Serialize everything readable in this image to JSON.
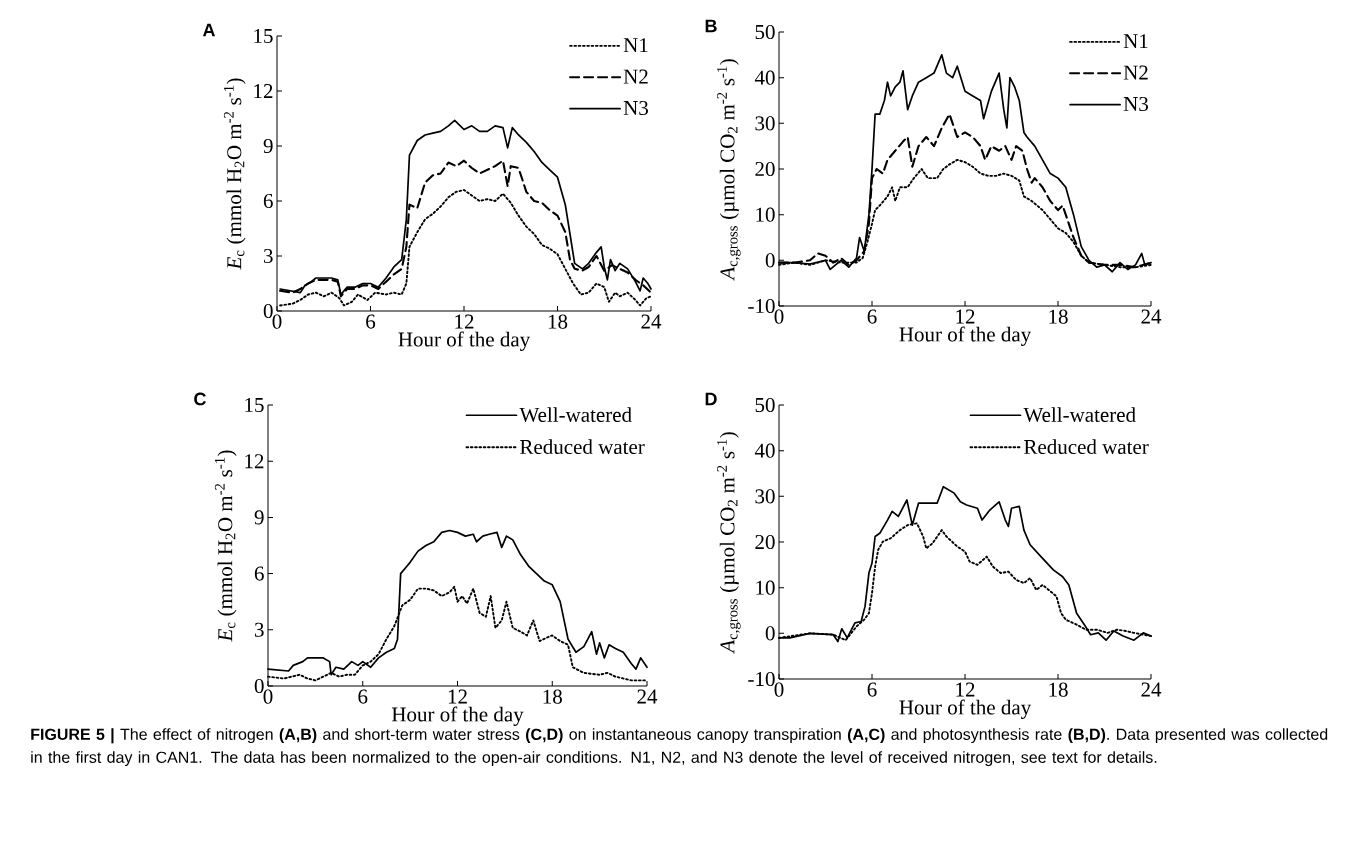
{
  "chart_data": [
    {
      "type": "line",
      "title": "A",
      "xlabel": "Hour of the day",
      "ylabel": "*E*$_{c}$ (mmol H$_{2}$O m$^{-2}$ s$^{-1}$)",
      "xlim": [
        0,
        24
      ],
      "xticks": [
        0,
        6,
        12,
        18,
        24
      ],
      "ylim": [
        0,
        15
      ],
      "yticks": [
        0,
        3,
        6,
        9,
        12,
        15
      ],
      "legend": "top right",
      "series": [
        {
          "name": "N1",
          "color": "#000000",
          "line_style": "dotted",
          "x": [
            0.2,
            1,
            1.5,
            2,
            2.5,
            3,
            3.5,
            4,
            4.3,
            4.8,
            5.2,
            5.8,
            6.3,
            7,
            7.5,
            8,
            8.3,
            8.5,
            9,
            9.5,
            10,
            10.5,
            11,
            11.5,
            12,
            12.5,
            13,
            13.5,
            14,
            14.5,
            15,
            15.5,
            16,
            16.5,
            17,
            17.5,
            18,
            18.5,
            19,
            19.5,
            20,
            20.5,
            21,
            21.3,
            21.7,
            22,
            22.5,
            23,
            23.3,
            23.7,
            24
          ],
          "values": [
            0.3,
            0.4,
            0.6,
            0.9,
            1.0,
            0.8,
            1.0,
            0.7,
            0.3,
            0.5,
            0.9,
            0.6,
            1.0,
            0.9,
            1.0,
            0.9,
            1.5,
            3.5,
            4.3,
            5.0,
            5.3,
            5.7,
            6.2,
            6.5,
            6.6,
            6.3,
            6.0,
            6.1,
            6.0,
            6.4,
            5.9,
            5.2,
            4.6,
            4.2,
            3.6,
            3.4,
            3.1,
            2.3,
            1.5,
            0.9,
            1.0,
            1.5,
            1.3,
            0.5,
            1.0,
            0.8,
            1.0,
            0.6,
            0.3,
            0.7,
            0.8
          ]
        },
        {
          "name": "N2",
          "color": "#000000",
          "line_style": "dashed",
          "x": [
            0.2,
            1,
            1.5,
            2,
            2.5,
            3.5,
            3.9,
            4.1,
            4.5,
            5,
            5.5,
            6,
            6.5,
            7,
            7.5,
            8,
            8.3,
            8.5,
            9,
            9.5,
            10,
            10.5,
            11,
            11.5,
            12,
            12.5,
            13,
            13.5,
            14,
            14.5,
            14.8,
            15,
            15.5,
            16,
            16.5,
            17,
            17.5,
            18,
            18.5,
            18.8,
            19.1,
            19.6,
            20,
            20.5,
            21,
            21.5,
            22,
            22.5,
            23,
            23.5,
            24
          ],
          "values": [
            1.1,
            1.0,
            1.2,
            1.5,
            1.7,
            1.7,
            1.6,
            0.8,
            1.2,
            1.2,
            1.4,
            1.4,
            1.2,
            1.6,
            2.0,
            2.3,
            3.5,
            5.8,
            5.6,
            7.0,
            7.4,
            7.5,
            8.1,
            7.9,
            8.2,
            7.8,
            7.5,
            7.7,
            7.9,
            8.2,
            6.8,
            7.9,
            7.8,
            6.5,
            6.0,
            5.9,
            5.5,
            5.2,
            4.3,
            2.8,
            2.3,
            2.2,
            2.4,
            3.0,
            2.2,
            2.5,
            2.3,
            2.1,
            1.7,
            1.4,
            1.0
          ]
        },
        {
          "name": "N3",
          "color": "#000000",
          "line_style": "solid",
          "x": [
            0.2,
            1.5,
            1.8,
            2.2,
            2.5,
            3.5,
            3.9,
            4.1,
            4.5,
            5,
            5.5,
            6,
            6.5,
            7,
            7.5,
            8,
            8.3,
            8.5,
            9,
            9.5,
            10,
            10.5,
            11,
            11.4,
            12,
            12.5,
            13,
            13.5,
            14,
            14.5,
            14.8,
            15.1,
            15.5,
            16,
            16.5,
            17,
            17.5,
            18,
            18.5,
            18.8,
            19.1,
            19.6,
            20,
            20.5,
            20.8,
            21,
            21.2,
            21.4,
            21.7,
            22,
            22.5,
            23,
            23.3,
            23.5,
            23.8,
            24
          ],
          "values": [
            1.2,
            1.0,
            1.4,
            1.6,
            1.8,
            1.8,
            1.7,
            0.9,
            1.3,
            1.3,
            1.5,
            1.5,
            1.3,
            1.8,
            2.4,
            2.8,
            5.0,
            8.5,
            9.3,
            9.6,
            9.7,
            9.8,
            10.1,
            10.4,
            9.9,
            10.1,
            9.8,
            9.8,
            10.1,
            10.0,
            8.9,
            10.0,
            9.6,
            9.2,
            8.7,
            8.1,
            7.7,
            7.3,
            5.8,
            4.2,
            2.6,
            2.3,
            2.6,
            3.2,
            3.5,
            2.4,
            1.7,
            2.8,
            2.2,
            2.6,
            2.3,
            1.6,
            1.1,
            1.8,
            1.5,
            1.2
          ]
        }
      ]
    },
    {
      "type": "line",
      "title": "B",
      "xlabel": "Hour of the day",
      "ylabel": "*A*$_{c,gross}$ (µmol CO$_{2}$ m$^{-2}$ s$^{-1}$)",
      "xlim": [
        0,
        24
      ],
      "xticks": [
        0,
        6,
        12,
        18,
        24
      ],
      "ylim": [
        -10,
        50
      ],
      "yticks": [
        -10,
        0,
        10,
        20,
        30,
        40,
        50
      ],
      "legend": "top right",
      "series": [
        {
          "name": "N1",
          "color": "#000000",
          "line_style": "dotted",
          "x": [
            0,
            1,
            2,
            3,
            4,
            5,
            5.4,
            5.7,
            6,
            6.2,
            6.5,
            7,
            7.3,
            7.5,
            7.8,
            8.3,
            8.7,
            9.2,
            9.6,
            10.2,
            10.6,
            11,
            11.5,
            12,
            12.5,
            13,
            13.5,
            14,
            14.5,
            15,
            15.5,
            15.8,
            16.3,
            17,
            17.5,
            18,
            18.5,
            19,
            19.5,
            20,
            21,
            22,
            23,
            24
          ],
          "values": [
            -1,
            -0.5,
            -1,
            0,
            -0.5,
            -0.5,
            0.5,
            4,
            8,
            11,
            12,
            14,
            16,
            13,
            16,
            16,
            18,
            20,
            18,
            18,
            20,
            21,
            22,
            21.5,
            20.5,
            19,
            18.5,
            18.5,
            19,
            18.5,
            17.5,
            14,
            13,
            11,
            9,
            7,
            6,
            4,
            1,
            -0.5,
            -1,
            -1.5,
            -1.5,
            -1
          ]
        },
        {
          "name": "N2",
          "color": "#000000",
          "line_style": "dashed",
          "x": [
            0,
            1,
            2,
            2.5,
            3,
            3.5,
            4,
            4.5,
            5,
            5.5,
            5.8,
            6,
            6.3,
            6.7,
            7,
            7.5,
            8,
            8.3,
            8.6,
            9,
            9.5,
            10,
            10.5,
            11,
            11.5,
            12,
            12.5,
            13,
            13.3,
            13.7,
            14.2,
            14.6,
            15,
            15.3,
            15.7,
            16,
            16.3,
            16.5,
            17,
            17.5,
            18,
            18.3,
            18.7,
            19,
            19.5,
            20,
            21,
            22,
            23,
            24
          ],
          "values": [
            -0.5,
            -0.5,
            0,
            1.5,
            1,
            -0.5,
            0.5,
            -1,
            0,
            2,
            8,
            18,
            20,
            19,
            22,
            24,
            26,
            27,
            20.5,
            25,
            27,
            25,
            29,
            32,
            27,
            28,
            27,
            25,
            22,
            25,
            24,
            25,
            22,
            25,
            24,
            20,
            17,
            18,
            16,
            13,
            11,
            12,
            8,
            5,
            1,
            -0.5,
            -1,
            -1,
            -1.5,
            -0.5
          ]
        },
        {
          "name": "N3",
          "color": "#000000",
          "line_style": "solid",
          "x": [
            0,
            1,
            2,
            3,
            3.3,
            4,
            4.5,
            5,
            5.2,
            5.5,
            5.8,
            6,
            6.2,
            6.5,
            6.8,
            7,
            7.2,
            7.5,
            7.8,
            8,
            8.3,
            8.6,
            9,
            9.5,
            10,
            10.5,
            10.8,
            11.2,
            11.5,
            12,
            12.5,
            13,
            13.2,
            13.7,
            14.2,
            14.5,
            14.7,
            14.9,
            15.2,
            15.5,
            15.8,
            16,
            16.5,
            17,
            17.5,
            18,
            18.5,
            19,
            19.5,
            20,
            20.5,
            21,
            21.5,
            22,
            22.5,
            23,
            23.4,
            23.6,
            24
          ],
          "values": [
            -0.5,
            -0.5,
            -0.8,
            0,
            -2,
            0,
            -1.5,
            0.5,
            5,
            2,
            10,
            20,
            32,
            32,
            35,
            39,
            36,
            38,
            39,
            41.5,
            33,
            36,
            39,
            40,
            41,
            45,
            41,
            40,
            42.5,
            37,
            36,
            35,
            31,
            37,
            41,
            33,
            29,
            40,
            38,
            35,
            28,
            27,
            25,
            22,
            19,
            18,
            16,
            10,
            3,
            0,
            -1.5,
            -1,
            -2.5,
            -0.5,
            -2,
            -1,
            1.5,
            -1,
            -0.5
          ]
        }
      ]
    },
    {
      "type": "line",
      "title": "C",
      "xlabel": "Hour of the day",
      "ylabel": "*E*$_{c}$ (mmol H$_{2}$O m$^{-2}$ s$^{-1}$)",
      "xlim": [
        0,
        24
      ],
      "xticks": [
        0,
        6,
        12,
        18,
        24
      ],
      "ylim": [
        0,
        15
      ],
      "yticks": [
        0,
        3,
        6,
        9,
        12,
        15
      ],
      "legend": "top right",
      "series": [
        {
          "name": "Well-watered",
          "color": "#000000",
          "line_style": "solid",
          "x": [
            0,
            1.3,
            1.6,
            2.2,
            2.5,
            3.5,
            3.9,
            4.0,
            4.3,
            4.8,
            5.3,
            5.7,
            6,
            6.5,
            7,
            7.5,
            8,
            8.2,
            8.4,
            8.7,
            9,
            9.5,
            10,
            10.5,
            11,
            11.5,
            12,
            12.5,
            13,
            13.2,
            13.6,
            14,
            14.5,
            14.8,
            15.1,
            15.5,
            16,
            16.5,
            17,
            17.5,
            18,
            18.5,
            19,
            19.5,
            20,
            20.5,
            20.8,
            21,
            21.3,
            21.6,
            22,
            22.5,
            23,
            23.3,
            23.6,
            24
          ],
          "values": [
            0.9,
            0.8,
            1.1,
            1.3,
            1.5,
            1.5,
            1.3,
            0.6,
            1.0,
            0.9,
            1.3,
            1.1,
            1.3,
            1.0,
            1.5,
            1.8,
            2.0,
            2.5,
            6.0,
            6.3,
            6.6,
            7.2,
            7.5,
            7.7,
            8.2,
            8.3,
            8.2,
            8.0,
            8.1,
            7.7,
            8.0,
            8.1,
            8.2,
            7.4,
            8.0,
            7.8,
            7.0,
            6.4,
            6.0,
            5.6,
            5.4,
            4.5,
            2.5,
            1.8,
            2.1,
            2.9,
            1.7,
            2.3,
            1.5,
            2.2,
            2.0,
            1.8,
            1.2,
            0.9,
            1.5,
            1.0
          ]
        },
        {
          "name": "Reduced water",
          "color": "#000000",
          "line_style": "dotted",
          "x": [
            0,
            1,
            2,
            2.5,
            3,
            3.5,
            4,
            4.5,
            5,
            5.5,
            6,
            6.5,
            7,
            7.5,
            8,
            8.5,
            9,
            9.5,
            10,
            10.5,
            11,
            11.5,
            11.8,
            12,
            12.3,
            12.6,
            13,
            13.4,
            13.8,
            14.1,
            14.4,
            14.8,
            15.1,
            15.5,
            16,
            16.4,
            16.8,
            17.2,
            17.7,
            18,
            18.5,
            19,
            19.3,
            20,
            21,
            21.5,
            22,
            23,
            24
          ],
          "values": [
            0.5,
            0.4,
            0.6,
            0.4,
            0.3,
            0.5,
            0.7,
            0.5,
            0.6,
            0.6,
            1.1,
            1.3,
            1.7,
            2.5,
            3.2,
            4.3,
            4.6,
            5.2,
            5.2,
            5.1,
            4.8,
            5.0,
            5.3,
            4.5,
            4.8,
            4.4,
            5.2,
            3.9,
            3.7,
            4.8,
            3.1,
            3.5,
            4.5,
            3.1,
            2.9,
            2.7,
            3.5,
            2.4,
            2.6,
            2.7,
            2.4,
            2.2,
            1.0,
            0.7,
            0.6,
            0.7,
            0.5,
            0.3,
            0.3
          ]
        }
      ]
    },
    {
      "type": "line",
      "title": "D",
      "xlabel": "Hour of the day",
      "ylabel": "*A*$_{c,gross}$ (µmol CO$_{2}$ m$^{-2}$ s$^{-1}$)",
      "xlim": [
        0,
        24
      ],
      "xticks": [
        0,
        6,
        12,
        18,
        24
      ],
      "ylim": [
        -10,
        50
      ],
      "yticks": [
        -10,
        0,
        10,
        20,
        30,
        40,
        50
      ],
      "legend": "top right",
      "annotations": [
        "**FIGURE 5 |** The effect of nitrogen **(A,B)** and short-term water stress **(C,D)** on instantaneous canopy transpiration **(A,C)** and photosynthesis rate **(B,D)**. Data presented was collected in the first day in CAN1. The data has been normalized to the open-air conditions. N1, N2, and N3 denote the level of received nitrogen, see text for details."
      ],
      "series": [
        {
          "name": "Well-watered",
          "color": "#000000",
          "line_style": "solid",
          "x": [
            0,
            0.7,
            2,
            3.5,
            3.8,
            4.05,
            4.4,
            4.9,
            5.3,
            5.55,
            5.8,
            6.0,
            6.2,
            6.5,
            7.0,
            7.3,
            7.7,
            8.25,
            8.6,
            9.0,
            9.75,
            10.2,
            10.6,
            11.3,
            11.7,
            12.1,
            12.8,
            13.1,
            13.6,
            14.2,
            14.6,
            14.8,
            15.0,
            15.5,
            15.8,
            16.2,
            16.9,
            17.7,
            18.3,
            18.7,
            19.2,
            19.7,
            20.1,
            20.6,
            21.1,
            21.6,
            22.2,
            22.9,
            23.5,
            24
          ],
          "values": [
            -1,
            -1,
            0,
            -0.3,
            -1.8,
            1.0,
            -1,
            2.3,
            2.6,
            5.9,
            13.2,
            15.4,
            21.2,
            21.9,
            24.8,
            26.7,
            25.6,
            29.2,
            23.7,
            28.5,
            28.5,
            28.5,
            32.1,
            30.7,
            28.8,
            28.1,
            27.4,
            24.8,
            27,
            28.8,
            24.8,
            23.4,
            27.4,
            27.8,
            22.6,
            19.4,
            16.8,
            13.9,
            12.4,
            10.6,
            4.4,
            1.9,
            -0.3,
            0.1,
            -1.5,
            0.5,
            -0.6,
            -1.5,
            0.1,
            -0.6
          ]
        },
        {
          "name": "Reduced water",
          "color": "#000000",
          "line_style": "dotted",
          "x": [
            0,
            2,
            3.5,
            4.3,
            5,
            5.5,
            5.8,
            6.0,
            6.2,
            6.4,
            6.7,
            7.2,
            7.8,
            8.3,
            8.9,
            9.3,
            9.5,
            9.9,
            10.5,
            10.8,
            11.5,
            12,
            12.3,
            12.8,
            13.4,
            13.8,
            14.3,
            14.8,
            15.3,
            15.8,
            16.2,
            16.6,
            17.0,
            17.4,
            17.9,
            18.2,
            18.5,
            19.2,
            19.8,
            20.5,
            21.2,
            21.8,
            22.4,
            22.9,
            23.5,
            24
          ],
          "values": [
            -1,
            0,
            -0.3,
            -1.5,
            1.5,
            3,
            4.4,
            8.8,
            14.6,
            18.3,
            20.1,
            20.8,
            22.6,
            23.7,
            24.1,
            21.2,
            18.6,
            19.7,
            22.6,
            21.2,
            19.0,
            17.9,
            15.7,
            15.0,
            16.8,
            14.6,
            13.2,
            13.5,
            11.7,
            11,
            12.1,
            9.5,
            10.6,
            9.5,
            8.1,
            4.4,
            3.0,
            1.9,
            0.8,
            0.8,
            0.1,
            0.8,
            0.5,
            0.1,
            -0.3,
            -0.6
          ]
        }
      ]
    }
  ]
}
